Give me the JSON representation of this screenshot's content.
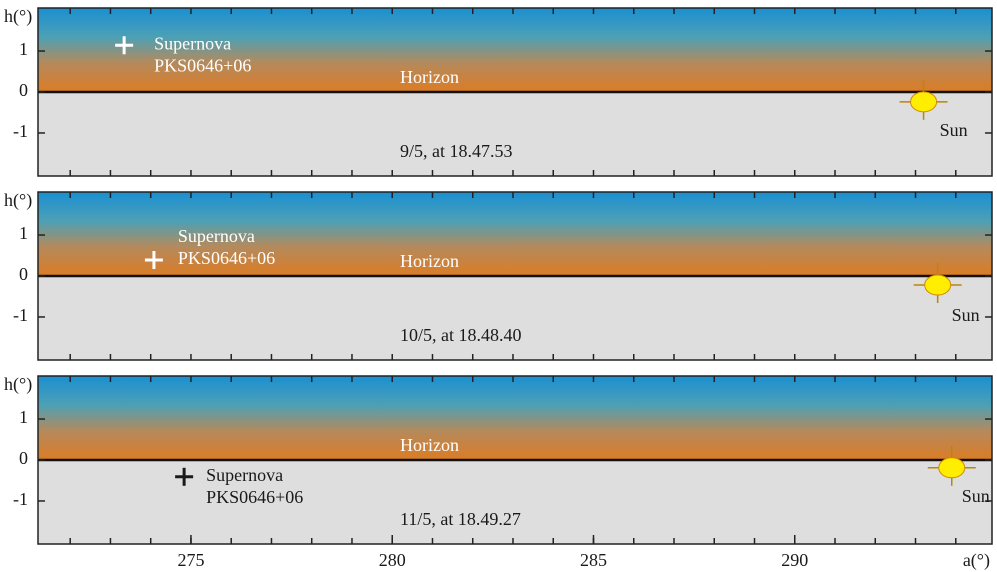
{
  "chart_data": [
    {
      "type": "scatter",
      "ylabel": "h(°)",
      "horizon_label": "Horizon",
      "caption": "9/5, at 18.47.53",
      "xlim": [
        271.2,
        294.9
      ],
      "ylim": [
        -2.05,
        2.05
      ],
      "yticks": [
        -1,
        0,
        1
      ],
      "xminorticks": [
        272,
        273,
        274,
        275,
        276,
        277,
        278,
        279,
        280,
        281,
        282,
        283,
        284,
        285,
        286,
        287,
        288,
        289,
        290,
        291,
        292,
        293,
        294
      ],
      "points": [
        {
          "label": [
            "Supernova",
            "PKS0646+06"
          ],
          "x": 273.34,
          "y": 1.14,
          "marker": "cross",
          "color": "#ffffff"
        },
        {
          "label": [
            "Sun"
          ],
          "x": 293.2,
          "y": -0.24,
          "marker": "sun",
          "color": "#ffee00"
        }
      ]
    },
    {
      "type": "scatter",
      "ylabel": "h(°)",
      "horizon_label": "Horizon",
      "caption": "10/5, at 18.48.40",
      "xlim": [
        271.2,
        294.9
      ],
      "ylim": [
        -2.05,
        2.05
      ],
      "yticks": [
        -1,
        0,
        1
      ],
      "xminorticks": [
        272,
        273,
        274,
        275,
        276,
        277,
        278,
        279,
        280,
        281,
        282,
        283,
        284,
        285,
        286,
        287,
        288,
        289,
        290,
        291,
        292,
        293,
        294
      ],
      "points": [
        {
          "label": [
            "Supernova",
            "PKS0646+06"
          ],
          "x": 274.08,
          "y": 0.39,
          "marker": "cross",
          "color": "#ffffff"
        },
        {
          "label": [
            "Sun"
          ],
          "x": 293.55,
          "y": -0.22,
          "marker": "sun",
          "color": "#ffee00"
        }
      ]
    },
    {
      "type": "scatter",
      "ylabel": "h(°)",
      "xlabel": "a(°)",
      "horizon_label": "Horizon",
      "caption": "11/5, at 18.49.27",
      "xlim": [
        271.2,
        294.9
      ],
      "ylim": [
        -2.05,
        2.05
      ],
      "yticks": [
        -1,
        0,
        1
      ],
      "xticks": [
        275,
        280,
        285,
        290
      ],
      "xminorticks": [
        272,
        273,
        274,
        275,
        276,
        277,
        278,
        279,
        280,
        281,
        282,
        283,
        284,
        285,
        286,
        287,
        288,
        289,
        290,
        291,
        292,
        293,
        294
      ],
      "points": [
        {
          "label": [
            "Supernova",
            "PKS0646+06"
          ],
          "x": 274.83,
          "y": -0.41,
          "marker": "cross",
          "color": "#1a1a1a"
        },
        {
          "label": [
            "Sun"
          ],
          "x": 293.9,
          "y": -0.19,
          "marker": "sun",
          "color": "#ffee00"
        }
      ]
    }
  ]
}
